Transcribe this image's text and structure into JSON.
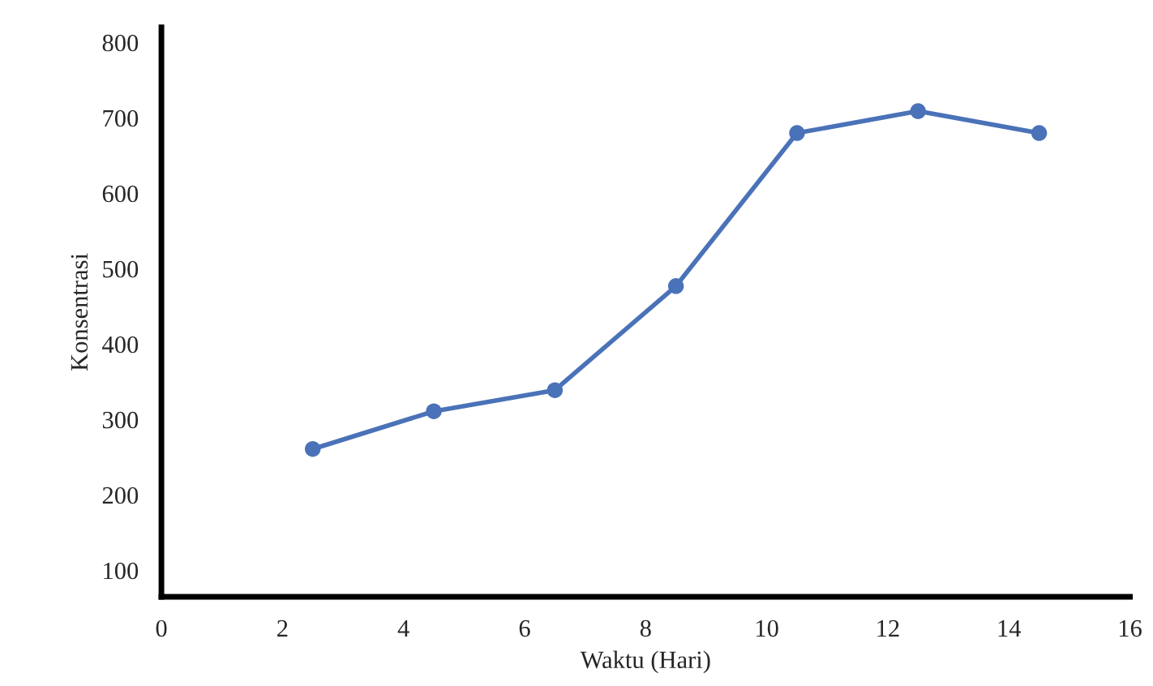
{
  "chart_data": {
    "type": "line",
    "xlabel": "Waktu (Hari)",
    "ylabel": "Konsentrasi",
    "x": [
      2.5,
      4.5,
      6.5,
      8.5,
      10.5,
      12.5,
      14.5
    ],
    "series": [
      {
        "color": "#4a72b8",
        "values": [
          261,
          311,
          339,
          477,
          680,
          709,
          680
        ]
      }
    ],
    "xlim": [
      0,
      16
    ],
    "xticks": [
      0,
      2,
      4,
      6,
      8,
      10,
      12,
      14,
      16
    ],
    "ylim": [
      65,
      820
    ],
    "yticks": [
      100,
      200,
      300,
      400,
      500,
      600,
      700,
      800
    ],
    "marker": "circle",
    "line_style": "solid",
    "grid": false,
    "legend": false
  }
}
